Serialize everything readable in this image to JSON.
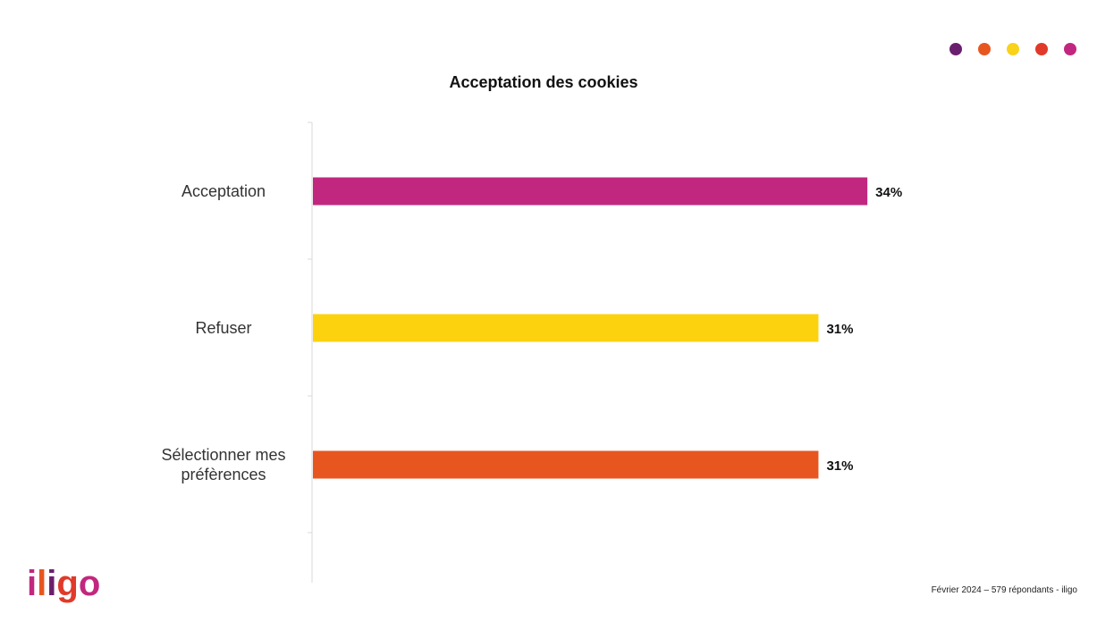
{
  "brand": {
    "logo_text": "iligo",
    "dot_colors": [
      "#6A1F6E",
      "#E8561F",
      "#F9D21A",
      "#E03A2A",
      "#C2277F"
    ]
  },
  "footer": {
    "source": "Février 2024 – 579 répondants - iligo"
  },
  "chart_data": {
    "type": "bar",
    "orientation": "horizontal",
    "title": "Acceptation des cookies",
    "categories": [
      "Acceptation",
      "Refuser",
      "Sélectionner mes préfèrences"
    ],
    "values": [
      34,
      31,
      31
    ],
    "value_labels": [
      "34%",
      "31%",
      "31%"
    ],
    "colors": [
      "#C1277F",
      "#FCD20F",
      "#E8561F"
    ],
    "xlim": [
      0,
      50
    ],
    "grid": false,
    "legend": "none"
  }
}
